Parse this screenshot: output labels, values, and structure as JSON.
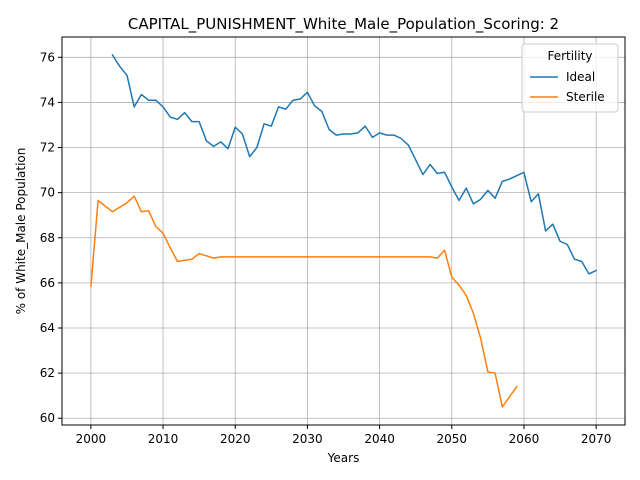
{
  "chart_data": {
    "type": "line",
    "title": "CAPITAL_PUNISHMENT_White_Male_Population_Scoring: 2",
    "xlabel": "Years",
    "ylabel": "% of White_Male Population",
    "xlim": [
      1996,
      2074
    ],
    "ylim": [
      59.7,
      76.9
    ],
    "xticks": [
      2000,
      2010,
      2020,
      2030,
      2040,
      2050,
      2060,
      2070
    ],
    "yticks": [
      60,
      62,
      64,
      66,
      68,
      70,
      72,
      74,
      76
    ],
    "grid": true,
    "legend": {
      "title": "Fertility",
      "placement": "top-right"
    },
    "series": [
      {
        "name": "Ideal",
        "color": "#1f77b4",
        "x": [
          2003,
          2004,
          2005,
          2006,
          2007,
          2008,
          2009,
          2010,
          2011,
          2012,
          2013,
          2014,
          2015,
          2016,
          2017,
          2018,
          2019,
          2020,
          2021,
          2022,
          2023,
          2024,
          2025,
          2026,
          2027,
          2028,
          2029,
          2030,
          2031,
          2032,
          2033,
          2034,
          2035,
          2036,
          2037,
          2038,
          2039,
          2040,
          2041,
          2042,
          2043,
          2044,
          2045,
          2046,
          2047,
          2048,
          2049,
          2050,
          2051,
          2052,
          2053,
          2054,
          2055,
          2056,
          2057,
          2058,
          2059,
          2060,
          2061,
          2062,
          2063,
          2064,
          2065,
          2066,
          2067,
          2068,
          2069,
          2070
        ],
        "y": [
          76.1,
          75.6,
          75.2,
          73.8,
          74.35,
          74.1,
          74.1,
          73.8,
          73.35,
          73.25,
          73.55,
          73.15,
          73.15,
          72.3,
          72.05,
          72.25,
          71.95,
          72.9,
          72.6,
          71.6,
          72.0,
          73.05,
          72.95,
          73.8,
          73.7,
          74.1,
          74.15,
          74.45,
          73.85,
          73.6,
          72.8,
          72.55,
          72.6,
          72.6,
          72.65,
          72.95,
          72.45,
          72.65,
          72.55,
          72.55,
          72.4,
          72.1,
          71.45,
          70.8,
          71.25,
          70.85,
          70.9,
          70.25,
          69.65,
          70.2,
          69.5,
          69.7,
          70.1,
          69.75,
          70.5,
          70.6,
          70.75,
          70.9,
          69.6,
          69.95,
          68.3,
          68.6,
          67.85,
          67.7,
          67.05,
          66.95,
          66.4,
          66.55
        ]
      },
      {
        "name": "Sterile",
        "color": "#ff7f0e",
        "x": [
          2000,
          2001,
          2002,
          2003,
          2004,
          2005,
          2006,
          2007,
          2008,
          2009,
          2010,
          2011,
          2012,
          2013,
          2014,
          2015,
          2016,
          2017,
          2018,
          2019,
          2020,
          2025,
          2030,
          2035,
          2040,
          2045,
          2047,
          2048,
          2049,
          2050,
          2051,
          2052,
          2053,
          2054,
          2055,
          2056,
          2057,
          2058,
          2059
        ],
        "y": [
          65.85,
          69.65,
          69.4,
          69.15,
          69.35,
          69.55,
          69.85,
          69.15,
          69.2,
          68.5,
          68.2,
          67.55,
          66.95,
          67.0,
          67.05,
          67.3,
          67.2,
          67.1,
          67.15,
          67.15,
          67.15,
          67.15,
          67.15,
          67.15,
          67.15,
          67.15,
          67.15,
          67.1,
          67.45,
          66.25,
          65.9,
          65.45,
          64.65,
          63.55,
          62.05,
          62.0,
          60.5,
          60.95,
          61.4
        ]
      }
    ]
  }
}
